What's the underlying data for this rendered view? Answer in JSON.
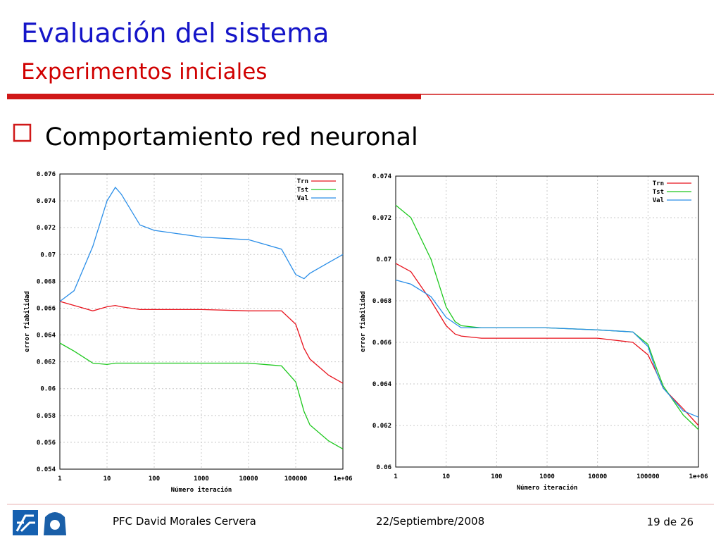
{
  "header": {
    "title": "Evaluación del sistema",
    "subtitle": "Experimentos iniciales"
  },
  "bullet": "Comportamiento red neuronal",
  "chart_data": [
    {
      "type": "line",
      "xlabel": "Número iteración",
      "ylabel": "error fiabilidad",
      "xscale": "log",
      "grid": true,
      "legend": "upper right",
      "x": [
        1,
        2,
        5,
        10,
        15,
        20,
        50,
        100,
        1000,
        10000,
        50000,
        100000,
        150000,
        200000,
        500000,
        1000000
      ],
      "xlim": [
        1,
        1000000
      ],
      "xticks": [
        1,
        10,
        100,
        1000,
        10000,
        100000,
        {
          "value": 1000000,
          "label": "1e+06"
        }
      ],
      "ylim": [
        0.054,
        0.076
      ],
      "yticks": [
        0.054,
        0.056,
        0.058,
        0.06,
        0.062,
        0.064,
        0.066,
        0.068,
        0.07,
        0.072,
        0.074,
        0.076
      ],
      "series": [
        {
          "name": "Trn",
          "color": "#e8141e",
          "values": [
            0.0665,
            0.0662,
            0.0658,
            0.0661,
            0.0662,
            0.0661,
            0.0659,
            0.0659,
            0.0659,
            0.0658,
            0.0658,
            0.0648,
            0.063,
            0.0622,
            0.061,
            0.0604
          ]
        },
        {
          "name": "Tst",
          "color": "#1ec81e",
          "values": [
            0.0634,
            0.0628,
            0.0619,
            0.0618,
            0.0619,
            0.0619,
            0.0619,
            0.0619,
            0.0619,
            0.0619,
            0.0617,
            0.0605,
            0.0583,
            0.0573,
            0.0561,
            0.0555
          ]
        },
        {
          "name": "Val",
          "color": "#2a8ee8",
          "values": [
            0.0665,
            0.0673,
            0.0706,
            0.074,
            0.075,
            0.0745,
            0.0722,
            0.0718,
            0.0713,
            0.0711,
            0.0704,
            0.0685,
            0.0682,
            0.0686,
            0.0694,
            0.07
          ]
        }
      ]
    },
    {
      "type": "line",
      "xlabel": "Número iteración",
      "ylabel": "error fiabilidad",
      "xscale": "log",
      "grid": true,
      "legend": "upper right",
      "x": [
        1,
        2,
        5,
        10,
        15,
        20,
        50,
        100,
        1000,
        10000,
        50000,
        100000,
        150000,
        200000,
        500000,
        1000000
      ],
      "xlim": [
        1,
        1000000
      ],
      "xticks": [
        1,
        10,
        100,
        1000,
        10000,
        100000,
        {
          "value": 1000000,
          "label": "1e+06"
        }
      ],
      "ylim": [
        0.06,
        0.074
      ],
      "yticks": [
        0.06,
        0.062,
        0.064,
        0.066,
        0.068,
        0.07,
        0.072,
        0.074
      ],
      "series": [
        {
          "name": "Trn",
          "color": "#e8141e",
          "values": [
            0.0698,
            0.0694,
            0.068,
            0.0668,
            0.0664,
            0.0663,
            0.0662,
            0.0662,
            0.0662,
            0.0662,
            0.066,
            0.0654,
            0.0645,
            0.0638,
            0.0628,
            0.062
          ]
        },
        {
          "name": "Tst",
          "color": "#1ec81e",
          "values": [
            0.0726,
            0.072,
            0.07,
            0.0677,
            0.067,
            0.0668,
            0.0667,
            0.0667,
            0.0667,
            0.0666,
            0.0665,
            0.0659,
            0.0647,
            0.0639,
            0.0625,
            0.0618
          ]
        },
        {
          "name": "Val",
          "color": "#2a8ee8",
          "values": [
            0.069,
            0.0688,
            0.0682,
            0.0672,
            0.0669,
            0.0667,
            0.0667,
            0.0667,
            0.0667,
            0.0666,
            0.0665,
            0.0658,
            0.0645,
            0.0638,
            0.0627,
            0.0624
          ]
        }
      ]
    }
  ],
  "footer": {
    "author": "PFC David Morales Cervera",
    "date": "22/Septiembre/2008",
    "page": "19 de 26"
  }
}
